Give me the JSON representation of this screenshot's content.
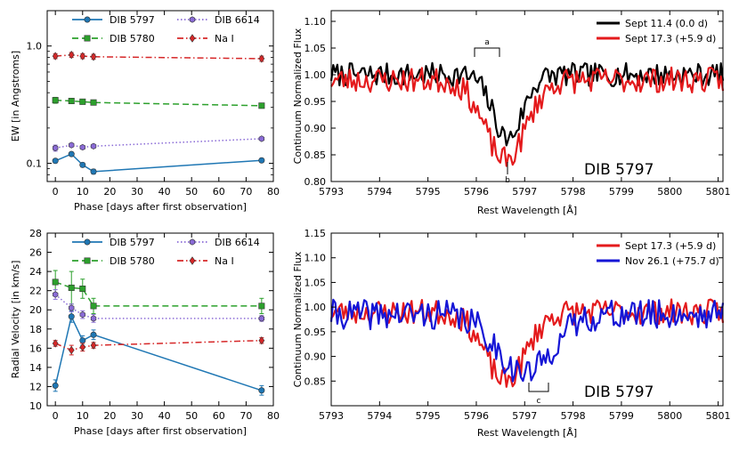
{
  "chart_data": [
    {
      "id": "ew",
      "type": "scatter",
      "xlabel": "Phase [days after first observation]",
      "ylabel": "EW [in Angstroms]",
      "yscale": "log",
      "xlim": [
        -3,
        80
      ],
      "ylim": [
        0.07,
        2.0
      ],
      "xticks": [
        "0",
        "10",
        "20",
        "30",
        "40",
        "50",
        "60",
        "70",
        "80"
      ],
      "yticks": [
        "0.1",
        "1.0"
      ],
      "legend": [
        {
          "label": "DIB 5797",
          "color": "#1f77b4",
          "style": "solid",
          "marker": "circle"
        },
        {
          "label": "DIB 6614",
          "color": "#8a6bd6",
          "style": "dotted",
          "marker": "hexagon"
        },
        {
          "label": "DIB 5780",
          "color": "#2ca02c",
          "style": "dashed",
          "marker": "square"
        },
        {
          "label": "Na I",
          "color": "#d62728",
          "style": "dashdot",
          "marker": "diamond"
        }
      ],
      "series": [
        {
          "name": "DIB 5797",
          "color": "#1f77b4",
          "style": "solid",
          "marker": "circle",
          "x": [
            0,
            5.9,
            10,
            14,
            75.7
          ],
          "y": [
            0.105,
            0.12,
            0.097,
            0.085,
            0.106
          ],
          "err": [
            0.004,
            0.004,
            0.004,
            0.004,
            0.004
          ]
        },
        {
          "name": "DIB 5780",
          "color": "#2ca02c",
          "style": "dashed",
          "marker": "square",
          "x": [
            0,
            5.9,
            10,
            14,
            75.7
          ],
          "y": [
            0.345,
            0.34,
            0.335,
            0.33,
            0.31
          ],
          "err": [
            0.02,
            0.01,
            0.01,
            0.01,
            0.01
          ]
        },
        {
          "name": "DIB 6614",
          "color": "#8a6bd6",
          "style": "dotted",
          "marker": "hexagon",
          "x": [
            0,
            5.9,
            10,
            14,
            75.7
          ],
          "y": [
            0.135,
            0.143,
            0.137,
            0.14,
            0.162
          ],
          "err": [
            0.008,
            0.005,
            0.005,
            0.005,
            0.005
          ]
        },
        {
          "name": "Na I",
          "color": "#d62728",
          "style": "dashdot",
          "marker": "diamond",
          "x": [
            0,
            5.9,
            10,
            14,
            75.7
          ],
          "y": [
            0.82,
            0.84,
            0.82,
            0.81,
            0.78
          ],
          "err": [
            0.04,
            0.04,
            0.04,
            0.04,
            0.04
          ]
        }
      ]
    },
    {
      "id": "spec1",
      "type": "line",
      "xlabel": "Rest Wavelength [Å]",
      "ylabel": "Continuum Normalized Flux",
      "xlim": [
        5793,
        5801.1
      ],
      "ylim": [
        0.8,
        1.12
      ],
      "xticks": [
        "5793",
        "5794",
        "5795",
        "5796",
        "5797",
        "5798",
        "5799",
        "5800",
        "5801"
      ],
      "yticks": [
        "0.80",
        "0.85",
        "0.90",
        "0.95",
        "1.00",
        "1.05",
        "1.10"
      ],
      "inner_label": "DIB 5797",
      "annotations": [
        "a",
        "b"
      ],
      "legend": [
        {
          "label": "Sept 11.4 (0.0 d)",
          "color": "#000000"
        },
        {
          "label": "Sept 17.3 (+5.9 d)",
          "color": "#e41a1c"
        }
      ],
      "series": [
        {
          "name": "Sept 11.4 (0.0 d)",
          "color": "#000000",
          "seed": 7,
          "noise": 0.022,
          "dip_center": 5796.65,
          "dip_depth": 0.12,
          "dip_width": 0.3,
          "dip_offset": 0.0
        },
        {
          "name": "Sept 17.3 (+5.9 d)",
          "color": "#e41a1c",
          "seed": 23,
          "noise": 0.024,
          "dip_center": 5796.6,
          "dip_depth": 0.15,
          "dip_width": 0.42,
          "dip_offset": -0.01
        }
      ]
    },
    {
      "id": "rv",
      "type": "scatter",
      "xlabel": "Phase [days after first observation]",
      "ylabel": "Radial Velocity [in km/s]",
      "xlim": [
        -3,
        80
      ],
      "ylim": [
        10,
        28
      ],
      "xticks": [
        "0",
        "10",
        "20",
        "30",
        "40",
        "50",
        "60",
        "70",
        "80"
      ],
      "yticks": [
        "10",
        "12",
        "14",
        "16",
        "18",
        "20",
        "22",
        "24",
        "26",
        "28"
      ],
      "legend": [
        {
          "label": "DIB 5797",
          "color": "#1f77b4",
          "style": "solid",
          "marker": "circle"
        },
        {
          "label": "DIB 6614",
          "color": "#8a6bd6",
          "style": "dotted",
          "marker": "hexagon"
        },
        {
          "label": "DIB 5780",
          "color": "#2ca02c",
          "style": "dashed",
          "marker": "square"
        },
        {
          "label": "Na I",
          "color": "#d62728",
          "style": "dashdot",
          "marker": "diamond"
        }
      ],
      "series": [
        {
          "name": "DIB 5797",
          "color": "#1f77b4",
          "style": "solid",
          "marker": "circle",
          "x": [
            0,
            5.9,
            10,
            14,
            75.7
          ],
          "y": [
            12.1,
            19.3,
            16.8,
            17.4,
            11.6
          ],
          "err": [
            0.6,
            0.6,
            0.5,
            0.5,
            0.5
          ]
        },
        {
          "name": "DIB 5780",
          "color": "#2ca02c",
          "style": "dashed",
          "marker": "square",
          "x": [
            0,
            5.9,
            10,
            14,
            75.7
          ],
          "y": [
            22.9,
            22.3,
            22.2,
            20.4,
            20.4
          ],
          "err": [
            1.2,
            1.7,
            1.0,
            0.8,
            0.8
          ]
        },
        {
          "name": "DIB 6614",
          "color": "#8a6bd6",
          "style": "dotted",
          "marker": "hexagon",
          "x": [
            0,
            5.9,
            10,
            14,
            75.7
          ],
          "y": [
            21.6,
            20.2,
            19.5,
            19.1,
            19.1
          ],
          "err": [
            0.5,
            0.4,
            0.4,
            0.4,
            0.3
          ]
        },
        {
          "name": "Na I",
          "color": "#d62728",
          "style": "dashdot",
          "marker": "diamond",
          "x": [
            0,
            5.9,
            10,
            14,
            75.7
          ],
          "y": [
            16.5,
            15.8,
            16.1,
            16.3,
            16.8
          ],
          "err": [
            0.3,
            0.5,
            0.4,
            0.3,
            0.3
          ]
        }
      ]
    },
    {
      "id": "spec2",
      "type": "line",
      "xlabel": "Rest Wavelength [Å]",
      "ylabel": "Continuum Normalized Flux",
      "xlim": [
        5793,
        5801.1
      ],
      "ylim": [
        0.8,
        1.15
      ],
      "xticks": [
        "5793",
        "5794",
        "5795",
        "5796",
        "5797",
        "5798",
        "5799",
        "5800",
        "5801"
      ],
      "yticks": [
        "0.85",
        "0.90",
        "0.95",
        "1.00",
        "1.05",
        "1.10",
        "1.15"
      ],
      "inner_label": "DIB 5797",
      "annotations": [
        "c"
      ],
      "legend": [
        {
          "label": "Sept 17.3 (+5.9 d)",
          "color": "#e41a1c"
        },
        {
          "label": "Nov 26.1 (+75.7 d)",
          "color": "#1515d6"
        }
      ],
      "series": [
        {
          "name": "Sept 17.3 (+5.9 d)",
          "color": "#e41a1c",
          "seed": 23,
          "noise": 0.026,
          "dip_center": 5796.6,
          "dip_depth": 0.14,
          "dip_width": 0.42,
          "dip_offset": -0.01
        },
        {
          "name": "Nov 26.1 (+75.7 d)",
          "color": "#1515d6",
          "seed": 41,
          "noise": 0.03,
          "dip_center": 5797.0,
          "dip_depth": 0.12,
          "dip_width": 0.55,
          "dip_offset": -0.015
        }
      ]
    }
  ]
}
